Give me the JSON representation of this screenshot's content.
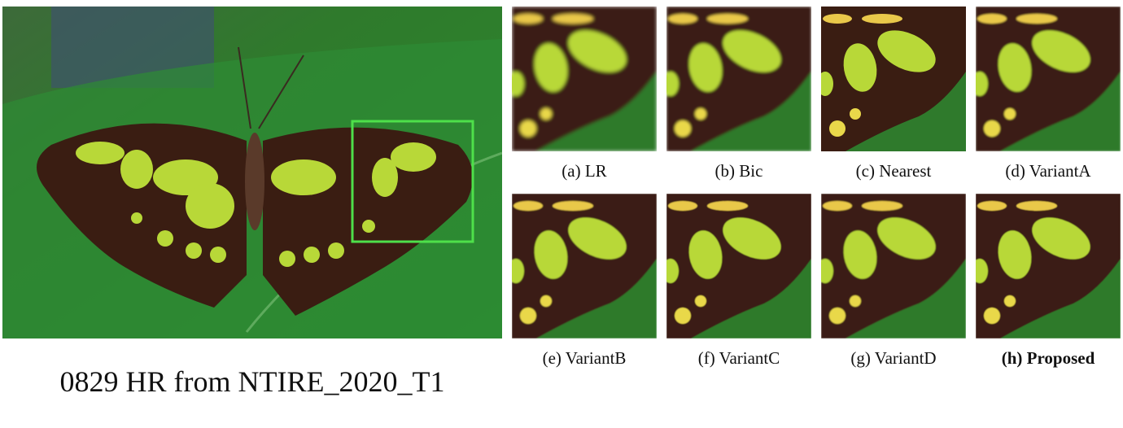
{
  "main_image": {
    "caption": "0829 HR from NTIRE_2020_T1",
    "highlight_color": "#4ee04a"
  },
  "crops": [
    {
      "label": "(a) LR",
      "bold": false
    },
    {
      "label": "(b) Bic",
      "bold": false
    },
    {
      "label": "(c) Nearest",
      "bold": false
    },
    {
      "label": "(d) VariantA",
      "bold": false
    },
    {
      "label": "(e) VariantB",
      "bold": false
    },
    {
      "label": "(f) VariantC",
      "bold": false
    },
    {
      "label": "(g) VariantD",
      "bold": false
    },
    {
      "label": "(h) Proposed",
      "bold": true
    }
  ],
  "colors": {
    "leaf": "#2f7a2c",
    "wing": "#3a1d12",
    "spot": "#b8d838",
    "border": "#4ee04a"
  }
}
